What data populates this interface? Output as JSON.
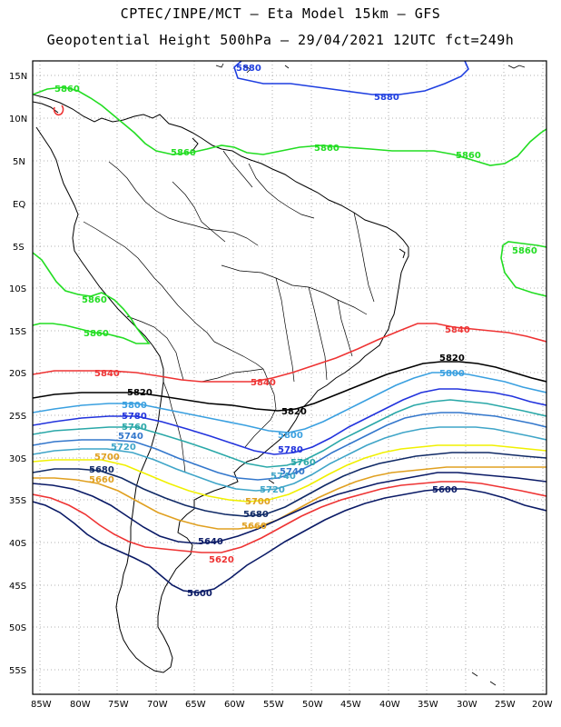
{
  "header": {
    "line1": "CPTEC/INPE/MCT –  Eta Model 15km – GFS",
    "line2": "Geopotential Height 500hPa – 29/04/2021 12UTC fct=249h"
  },
  "axes": {
    "lon_labels": [
      "85W",
      "80W",
      "75W",
      "70W",
      "65W",
      "60W",
      "55W",
      "50W",
      "45W",
      "40W",
      "35W",
      "30W",
      "25W",
      "20W"
    ],
    "lat_labels": [
      "15N",
      "10N",
      "5N",
      "EQ",
      "5S",
      "10S",
      "15S",
      "20S",
      "25S",
      "30S",
      "35S",
      "40S",
      "45S",
      "50S",
      "55S"
    ]
  },
  "colors": {
    "c5880": "#1f3fe0",
    "c5860": "#22dd22",
    "c5840": "#ee3333",
    "c5820": "#000000",
    "c5800": "#3aa0e0",
    "c5780": "#2233dd",
    "c5760": "#2aa8a8",
    "c5740": "#3377cc",
    "c5720": "#3fa5c8",
    "c5700": "#f0f000",
    "c5680": "#102a66",
    "c5660": "#e0a020",
    "c5640": "#0a1a66",
    "c5620": "#ee3333",
    "c5600": "#0a1a66"
  },
  "contours": {
    "label_5880a": "5880",
    "label_5880b": "5880",
    "label_5860a": "5860",
    "label_5860b": "5860",
    "label_5860c": "5860",
    "label_5860d": "5860",
    "label_5860e": "5860",
    "label_5860f": "5860",
    "label_5860g": "5860",
    "label_5840a": "5840",
    "label_5840b": "5840",
    "label_5840c": "5840",
    "label_5820a": "5820",
    "label_5820b": "5820",
    "label_5820c": "5820",
    "label_5800a": "5800",
    "label_5800b": "5800",
    "label_5800c": "5800",
    "label_5780a": "5780",
    "label_5780b": "5780",
    "label_5760a": "5760",
    "label_5760b": "5760",
    "label_5740a": "5740",
    "label_5740b": "5740",
    "label_5740c": "5740",
    "label_5720a": "5720",
    "label_5720b": "5720",
    "label_5700a": "5700",
    "label_5700b": "5700",
    "label_5680a": "5680",
    "label_5680b": "5680",
    "label_5660a": "5660",
    "label_5660b": "5660",
    "label_5640": "5640",
    "label_5620": "5620",
    "label_5600a": "5600",
    "label_5600b": "5600"
  }
}
